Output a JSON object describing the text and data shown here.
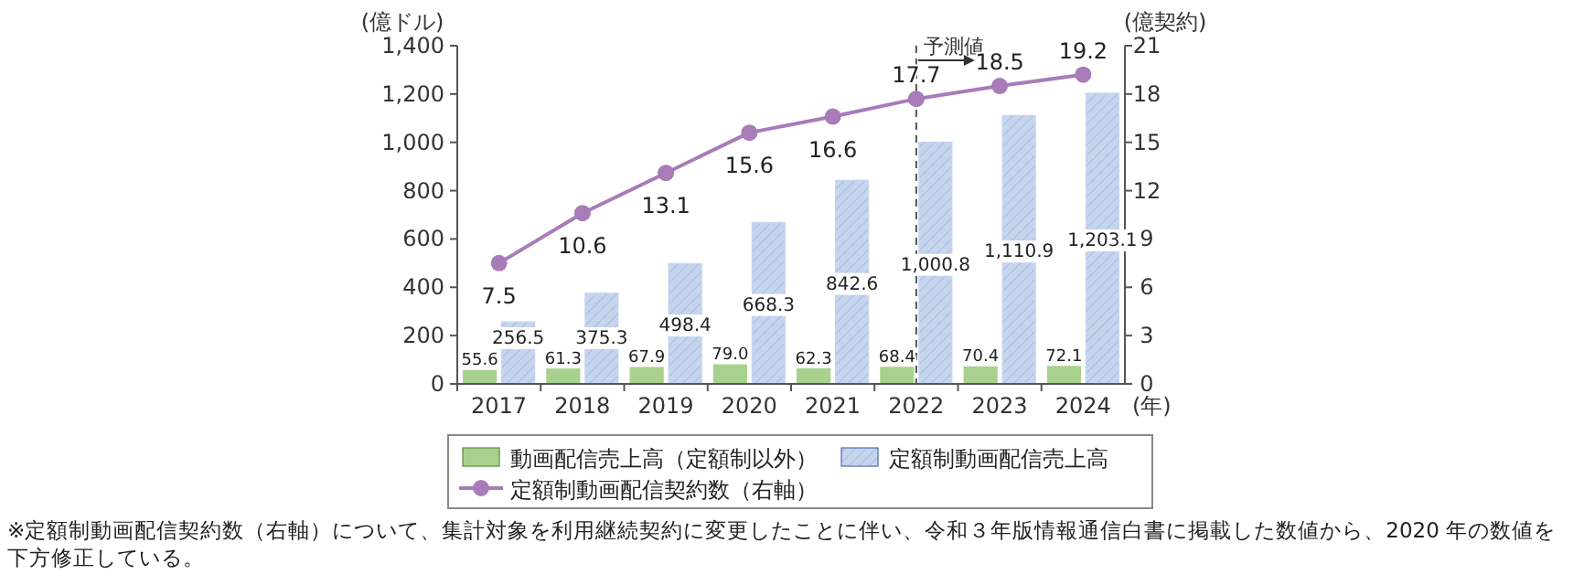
{
  "chart_data": {
    "type": "bar",
    "ylabel": "(億ドル)",
    "y2label": "(億契約)",
    "xlabel": "(年)",
    "categories": [
      "2017",
      "2018",
      "2019",
      "2020",
      "2021",
      "2022",
      "2023",
      "2024"
    ],
    "series": [
      {
        "name": "動画配信売上高（定額制以外）",
        "color": "#a9d18e",
        "values": [
          55.6,
          61.3,
          67.9,
          79.0,
          62.3,
          68.4,
          70.4,
          72.1
        ],
        "value_labels": [
          "55.6",
          "61.3",
          "67.9",
          "79.0",
          "62.3",
          "68.4",
          "70.4",
          "72.1"
        ]
      },
      {
        "name": "定額制動画配信売上高",
        "color": "#c5d5ee",
        "values": [
          256.5,
          375.3,
          498.4,
          668.3,
          842.6,
          1000.8,
          1110.9,
          1203.1
        ],
        "value_labels": [
          "256.5",
          "375.3",
          "498.4",
          "668.3",
          "842.6",
          "1,000.8",
          "1,110.9",
          "1,203.1"
        ]
      },
      {
        "name": "定額制動画配信契約数（右軸）",
        "type": "line",
        "axis": "y2",
        "color": "#a77cb8",
        "marker": "circle",
        "values": [
          7.5,
          10.6,
          13.1,
          15.6,
          16.6,
          17.7,
          18.5,
          19.2
        ],
        "value_labels": [
          "7.5",
          "10.6",
          "13.1",
          "15.6",
          "16.6",
          "17.7",
          "18.5",
          "19.2"
        ]
      }
    ],
    "ylim": [
      0,
      1400
    ],
    "yticks": [
      0,
      200,
      400,
      600,
      800,
      {
        "value": 1000,
        "label": "1,000"
      },
      {
        "value": 1200,
        "label": "1,200"
      },
      {
        "value": 1400,
        "label": "1,400"
      }
    ],
    "y2lim": [
      0,
      21
    ],
    "y2ticks": [
      0,
      3,
      6,
      9,
      12,
      15,
      18,
      21
    ],
    "ref_lines": [
      {
        "axis": "x",
        "value": "2022",
        "label": "予測値",
        "line_style": "dashed"
      }
    ],
    "legend": "bottom",
    "annotations": [
      "※定額制動画配信契約数（右軸）について、集計対象を利用継続契約に変更したことに伴い、令和３年版情報通信白書に掲載した数値から、2020 年の数値を下方修正している。"
    ]
  }
}
